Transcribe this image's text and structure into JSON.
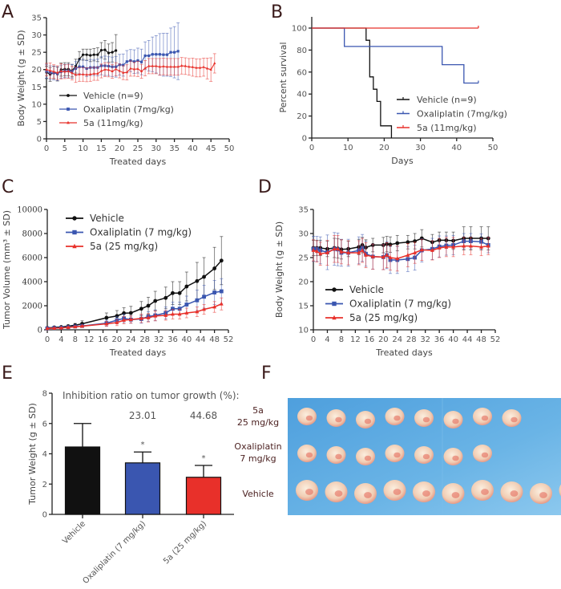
{
  "figure": {
    "panel_letters": [
      "A",
      "B",
      "C",
      "D",
      "E",
      "F"
    ]
  },
  "colors": {
    "vehicle": "#111111",
    "oxaliplatin": "#3a56b0",
    "compound_5a": "#e8302a",
    "photo_background": "#5aa9e0"
  },
  "chart_data": [
    {
      "panel": "A",
      "type": "line",
      "title": "",
      "xlabel": "Treated days",
      "ylabel": "Body Weight (g ± SD)",
      "xlim": [
        0,
        50
      ],
      "ylim": [
        0,
        35
      ],
      "xticks": [
        "0",
        "5",
        "10",
        "15",
        "20",
        "25",
        "30",
        "35",
        "40",
        "45",
        "50"
      ],
      "yticks": [
        "0",
        "5",
        "10",
        "15",
        "20",
        "25",
        "30",
        "35"
      ],
      "legend_position": "middle-left",
      "series": [
        {
          "name": "Vehicle (n=9)",
          "color_key": "vehicle",
          "marker": "circle",
          "x": [
            0,
            1,
            2,
            3,
            4,
            5,
            6,
            7,
            8,
            9,
            10,
            11,
            12,
            13,
            14,
            15,
            16,
            17,
            18,
            19
          ],
          "y": [
            19.2,
            18.6,
            19.2,
            18.7,
            20.0,
            20.1,
            20.1,
            19.7,
            21.0,
            23.0,
            24.3,
            24.3,
            24.1,
            24.3,
            24.3,
            25.6,
            25.7,
            24.8,
            25.0,
            25.5
          ],
          "sd": [
            1.8,
            2.0,
            1.8,
            2.0,
            1.9,
            1.9,
            1.9,
            1.8,
            2.0,
            2.2,
            1.6,
            1.6,
            1.8,
            1.8,
            2.0,
            2.2,
            2.7,
            2.6,
            2.8,
            4.6
          ]
        },
        {
          "name": "Oxaliplatin (7mg/kg)",
          "color_key": "oxaliplatin",
          "marker": "square",
          "x": [
            0,
            1,
            2,
            3,
            4,
            5,
            6,
            7,
            8,
            9,
            10,
            11,
            12,
            13,
            14,
            15,
            16,
            17,
            18,
            19,
            20,
            21,
            22,
            23,
            24,
            25,
            26,
            27,
            28,
            29,
            30,
            31,
            32,
            33,
            34,
            35,
            36
          ],
          "y": [
            19.5,
            19.1,
            19.0,
            18.8,
            19.4,
            19.6,
            19.6,
            19.5,
            20.3,
            20.8,
            20.8,
            20.3,
            20.6,
            20.6,
            20.6,
            21.1,
            21.1,
            21.0,
            20.8,
            20.8,
            21.4,
            21.3,
            22.3,
            22.6,
            22.3,
            22.6,
            22.2,
            24.0,
            24.0,
            24.4,
            24.4,
            24.4,
            24.3,
            24.3,
            25.0,
            25.0,
            25.3
          ],
          "sd": [
            2.0,
            2.0,
            2.0,
            2.0,
            1.9,
            1.9,
            2.0,
            2.0,
            2.0,
            2.0,
            2.2,
            2.3,
            2.3,
            2.3,
            2.4,
            2.6,
            2.8,
            2.7,
            2.8,
            3.0,
            3.0,
            3.2,
            3.2,
            3.2,
            3.4,
            3.6,
            3.7,
            4.0,
            4.4,
            5.0,
            5.4,
            6.0,
            6.2,
            6.2,
            7.0,
            7.4,
            8.2
          ]
        },
        {
          "name": "5a (11mg/kg)",
          "color_key": "compound_5a",
          "marker": "triangle",
          "x": [
            0,
            1,
            2,
            3,
            4,
            5,
            6,
            7,
            8,
            9,
            10,
            11,
            12,
            13,
            14,
            15,
            16,
            17,
            18,
            19,
            20,
            21,
            22,
            23,
            24,
            25,
            26,
            27,
            28,
            29,
            30,
            31,
            32,
            33,
            34,
            35,
            36,
            37,
            38,
            39,
            40,
            41,
            42,
            43,
            44,
            45,
            46
          ],
          "y": [
            20.0,
            19.7,
            19.4,
            19.1,
            19.5,
            19.4,
            19.5,
            19.0,
            18.5,
            18.6,
            18.6,
            18.5,
            18.6,
            18.8,
            18.8,
            19.6,
            20.0,
            19.9,
            19.5,
            20.1,
            19.6,
            19.1,
            19.2,
            20.3,
            20.1,
            20.2,
            19.5,
            20.4,
            21.0,
            21.0,
            21.0,
            20.8,
            20.9,
            20.8,
            20.8,
            20.8,
            20.8,
            21.1,
            21.0,
            20.8,
            20.7,
            20.5,
            20.5,
            20.7,
            20.3,
            20.0,
            21.8
          ],
          "sd": [
            1.8,
            2.2,
            2.0,
            2.0,
            2.2,
            2.0,
            2.0,
            2.0,
            2.2,
            2.0,
            2.0,
            2.0,
            2.0,
            1.9,
            1.9,
            2.0,
            2.0,
            2.0,
            2.0,
            1.9,
            2.0,
            2.0,
            2.2,
            2.2,
            2.0,
            2.2,
            2.0,
            2.2,
            2.2,
            2.2,
            2.2,
            2.4,
            2.4,
            2.4,
            2.4,
            2.4,
            2.4,
            2.4,
            2.4,
            2.4,
            2.6,
            2.6,
            2.6,
            2.6,
            3.0,
            3.4,
            2.8
          ]
        }
      ]
    },
    {
      "panel": "B",
      "type": "line",
      "subtype": "kaplan-meier",
      "title": "",
      "xlabel": "Days",
      "ylabel": "Percent survival",
      "xlim": [
        0,
        50
      ],
      "ylim": [
        0,
        100
      ],
      "xticks": [
        "0",
        "10",
        "20",
        "30",
        "40",
        "50"
      ],
      "yticks": [
        "0",
        "20",
        "40",
        "60",
        "80",
        "100"
      ],
      "legend_position": "bottom-right",
      "series": [
        {
          "name": "Vehicle (n=9)",
          "color_key": "vehicle",
          "steps": [
            [
              0,
              100
            ],
            [
              15,
              88.9
            ],
            [
              16,
              55.6
            ],
            [
              17,
              44.4
            ],
            [
              18,
              33.3
            ],
            [
              19,
              11.1
            ],
            [
              22,
              0
            ]
          ]
        },
        {
          "name": "Oxaliplatin (7mg/kg)",
          "color_key": "oxaliplatin",
          "steps": [
            [
              0,
              100
            ],
            [
              9,
              83.3
            ],
            [
              36,
              66.7
            ],
            [
              42,
              50
            ],
            [
              46,
              50
            ]
          ]
        },
        {
          "name": "5a (11mg/kg)",
          "color_key": "compound_5a",
          "steps": [
            [
              0,
              100
            ],
            [
              46,
              100
            ]
          ]
        }
      ]
    },
    {
      "panel": "C",
      "type": "line",
      "title": "",
      "xlabel": "Treated days",
      "ylabel": "Tumor Volume (mm³ ± SD)",
      "xlim": [
        0,
        52
      ],
      "ylim": [
        0,
        10000
      ],
      "xticks": [
        "0",
        "4",
        "8",
        "12",
        "16",
        "20",
        "24",
        "28",
        "32",
        "36",
        "40",
        "44",
        "48",
        "52"
      ],
      "yticks": [
        "0",
        "2000",
        "4000",
        "6000",
        "8000",
        "10000"
      ],
      "legend_position": "top-left",
      "series": [
        {
          "name": "Vehicle",
          "color_key": "vehicle",
          "marker": "circle",
          "x": [
            0,
            2,
            4,
            6,
            8,
            10,
            17,
            20,
            22,
            24,
            27,
            29,
            31,
            34,
            36,
            38,
            40,
            43,
            45,
            48,
            50
          ],
          "y": [
            150,
            200,
            230,
            300,
            380,
            500,
            1000,
            1150,
            1380,
            1400,
            1750,
            2000,
            2400,
            2650,
            3050,
            3050,
            3600,
            4050,
            4400,
            5100,
            5750
          ],
          "sd": [
            50,
            60,
            70,
            90,
            150,
            250,
            400,
            450,
            450,
            550,
            600,
            700,
            800,
            900,
            950,
            950,
            1200,
            1550,
            1600,
            1750,
            2000
          ]
        },
        {
          "name": "Oxaliplatin (7 mg/kg)",
          "color_key": "oxaliplatin",
          "marker": "square",
          "x": [
            0,
            2,
            4,
            6,
            8,
            10,
            17,
            20,
            22,
            24,
            27,
            29,
            31,
            34,
            36,
            38,
            40,
            43,
            45,
            48,
            50
          ],
          "y": [
            120,
            150,
            170,
            220,
            280,
            320,
            550,
            800,
            950,
            850,
            900,
            1100,
            1200,
            1400,
            1750,
            1750,
            2100,
            2450,
            2750,
            3100,
            3200
          ],
          "sd": [
            40,
            50,
            60,
            70,
            90,
            100,
            250,
            300,
            350,
            300,
            350,
            400,
            450,
            500,
            550,
            550,
            700,
            850,
            950,
            1000,
            1050
          ]
        },
        {
          "name": "5a (25 mg/kg)",
          "color_key": "compound_5a",
          "marker": "triangle",
          "x": [
            0,
            2,
            4,
            6,
            8,
            10,
            17,
            20,
            22,
            24,
            27,
            29,
            31,
            34,
            36,
            38,
            40,
            43,
            45,
            48,
            50
          ],
          "y": [
            110,
            130,
            150,
            200,
            250,
            300,
            500,
            600,
            800,
            850,
            950,
            1000,
            1150,
            1200,
            1300,
            1300,
            1400,
            1500,
            1700,
            1900,
            2150
          ],
          "sd": [
            40,
            40,
            50,
            60,
            70,
            80,
            200,
            250,
            300,
            300,
            350,
            350,
            400,
            400,
            400,
            400,
            400,
            400,
            400,
            450,
            500
          ]
        }
      ]
    },
    {
      "panel": "D",
      "type": "line",
      "title": "",
      "xlabel": "Treated days",
      "ylabel": "Body Weight (g ± SD)",
      "xlim": [
        0,
        52
      ],
      "ylim": [
        10,
        35
      ],
      "xticks": [
        "0",
        "4",
        "8",
        "12",
        "16",
        "20",
        "24",
        "28",
        "32",
        "36",
        "40",
        "44",
        "48",
        "52"
      ],
      "yticks": [
        "10",
        "15",
        "20",
        "25",
        "30",
        "35"
      ],
      "legend_position": "bottom-left",
      "series": [
        {
          "name": "Vehicle",
          "color_key": "vehicle",
          "marker": "circle",
          "x": [
            0,
            1,
            2,
            4,
            6,
            7,
            8,
            10,
            13,
            14,
            15,
            17,
            20,
            21,
            22,
            24,
            27,
            29,
            31,
            34,
            36,
            38,
            40,
            43,
            45,
            48,
            50
          ],
          "y": [
            27.0,
            27.0,
            27.0,
            26.8,
            27.0,
            26.9,
            26.7,
            26.8,
            27.2,
            27.6,
            27.1,
            27.6,
            27.6,
            27.8,
            27.7,
            28.0,
            28.2,
            28.4,
            29.0,
            28.2,
            28.6,
            28.6,
            28.5,
            29.0,
            29.0,
            29.0,
            29.0
          ],
          "sd": [
            1.6,
            1.6,
            1.6,
            1.6,
            2.0,
            2.0,
            2.0,
            1.6,
            1.6,
            1.6,
            1.6,
            1.4,
            1.6,
            1.6,
            1.6,
            1.6,
            1.4,
            1.6,
            1.8,
            1.6,
            1.7,
            1.7,
            1.8,
            2.4,
            2.4,
            2.4,
            2.4
          ]
        },
        {
          "name": "Oxaliplatin (7 mg/kg)",
          "color_key": "oxaliplatin",
          "marker": "square",
          "x": [
            0,
            1,
            2,
            4,
            6,
            7,
            8,
            10,
            13,
            14,
            15,
            17,
            20,
            21,
            22,
            24,
            27,
            29,
            31,
            34,
            36,
            38,
            40,
            43,
            45,
            48,
            50
          ],
          "y": [
            26.8,
            26.8,
            26.5,
            26.1,
            26.8,
            26.7,
            26.0,
            26.0,
            26.5,
            27.0,
            25.8,
            25.2,
            25.1,
            25.5,
            24.5,
            24.5,
            24.7,
            25.0,
            26.5,
            26.8,
            27.3,
            27.5,
            27.6,
            28.4,
            28.4,
            28.3,
            27.6
          ],
          "sd": [
            2.6,
            2.6,
            2.8,
            3.6,
            3.4,
            3.4,
            2.8,
            2.8,
            2.8,
            2.8,
            2.6,
            2.6,
            2.6,
            2.8,
            2.8,
            2.8,
            2.6,
            2.6,
            2.4,
            2.2,
            2.2,
            2.0,
            2.0,
            1.6,
            1.6,
            1.6,
            1.6
          ]
        },
        {
          "name": "5a (25 mg/kg)",
          "color_key": "compound_5a",
          "marker": "triangle",
          "x": [
            0,
            1,
            2,
            4,
            6,
            7,
            8,
            10,
            13,
            14,
            15,
            17,
            20,
            21,
            22,
            24,
            27,
            29,
            31,
            34,
            36,
            38,
            40,
            43,
            45,
            48,
            50
          ],
          "y": [
            26.5,
            26.3,
            25.8,
            26.0,
            26.8,
            26.8,
            26.2,
            26.0,
            26.0,
            26.5,
            25.5,
            25.2,
            25.1,
            25.5,
            25.0,
            24.8,
            25.5,
            26.0,
            26.6,
            26.5,
            27.0,
            27.2,
            27.2,
            27.4,
            27.4,
            27.2,
            27.4
          ],
          "sd": [
            2.2,
            2.2,
            2.4,
            2.6,
            2.8,
            2.8,
            2.5,
            2.5,
            2.5,
            2.5,
            2.6,
            2.6,
            2.6,
            2.6,
            2.6,
            2.6,
            2.4,
            2.2,
            2.2,
            2.0,
            2.0,
            2.0,
            2.0,
            1.8,
            1.8,
            1.8,
            1.8
          ]
        }
      ]
    },
    {
      "panel": "E",
      "type": "bar",
      "title": "Inhibition ratio on tumor growth (%):",
      "xlabel": "",
      "ylabel": "Tumor Weight (g ± SD)",
      "ylim": [
        0,
        8
      ],
      "yticks": [
        "0",
        "2",
        "4",
        "6",
        "8"
      ],
      "categories": [
        "Vehicle",
        "Oxaliplatin (7 mg/kg)",
        "5a (25 mg/kg)"
      ],
      "values": [
        4.45,
        3.4,
        2.45
      ],
      "sd": [
        1.55,
        0.72,
        0.78
      ],
      "color_keys": [
        "vehicle",
        "oxaliplatin",
        "compound_5a"
      ],
      "inhibition_ratios": [
        "",
        "23.01",
        "44.68"
      ],
      "significance": [
        "",
        "*",
        "*"
      ]
    }
  ],
  "photo_panel": {
    "panel": "F",
    "rows": [
      {
        "label_line1": "5a",
        "label_line2": "25 mg/kg",
        "tumor_count": 8
      },
      {
        "label_line1": "Oxaliplatin",
        "label_line2": "7 mg/kg",
        "tumor_count": 7
      },
      {
        "label_line1": "Vehicle",
        "label_line2": "",
        "tumor_count": 10
      }
    ]
  }
}
